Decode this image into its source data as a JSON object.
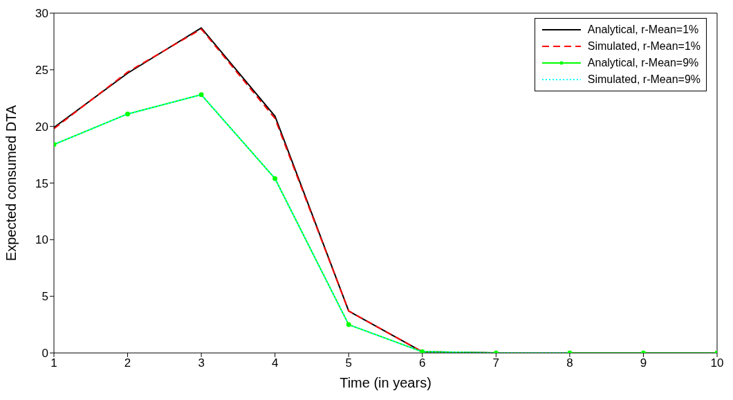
{
  "chart_data": {
    "type": "line",
    "xlabel": "Time (in years)",
    "ylabel": "Expected consumed DTA",
    "x": [
      1,
      2,
      3,
      4,
      5,
      6,
      7,
      8,
      9,
      10
    ],
    "series": [
      {
        "name": "Analytical, r-Mean=1%",
        "color": "#000000",
        "line_style": "solid",
        "marker": "none",
        "values": [
          19.9,
          24.7,
          28.7,
          20.9,
          3.7,
          0.1,
          0,
          0,
          0,
          0
        ]
      },
      {
        "name": "Simulated, r-Mean=1%",
        "color": "#ff0000",
        "line_style": "dashed",
        "marker": "none",
        "values": [
          19.8,
          24.8,
          28.6,
          20.7,
          3.7,
          0.1,
          0,
          null,
          null,
          null
        ]
      },
      {
        "name": "Analytical, r-Mean=9%",
        "color": "#00ff00",
        "line_style": "solid",
        "marker": "circle",
        "values": [
          18.4,
          21.1,
          22.8,
          15.4,
          2.5,
          0.1,
          0,
          0,
          0,
          0
        ]
      },
      {
        "name": "Simulated, r-Mean=9%",
        "color": "#00ffff",
        "line_style": "dotted",
        "marker": "none",
        "values": [
          18.4,
          21.1,
          22.8,
          15.4,
          2.5,
          0.1,
          0,
          0,
          null,
          null
        ]
      }
    ],
    "xlim": [
      1,
      10
    ],
    "xticks": [
      1,
      2,
      3,
      4,
      5,
      6,
      7,
      8,
      9,
      10
    ],
    "ylim": [
      0,
      30
    ],
    "yticks": [
      0,
      5,
      10,
      15,
      20,
      25,
      30
    ],
    "grid": false,
    "legend": "top right"
  }
}
